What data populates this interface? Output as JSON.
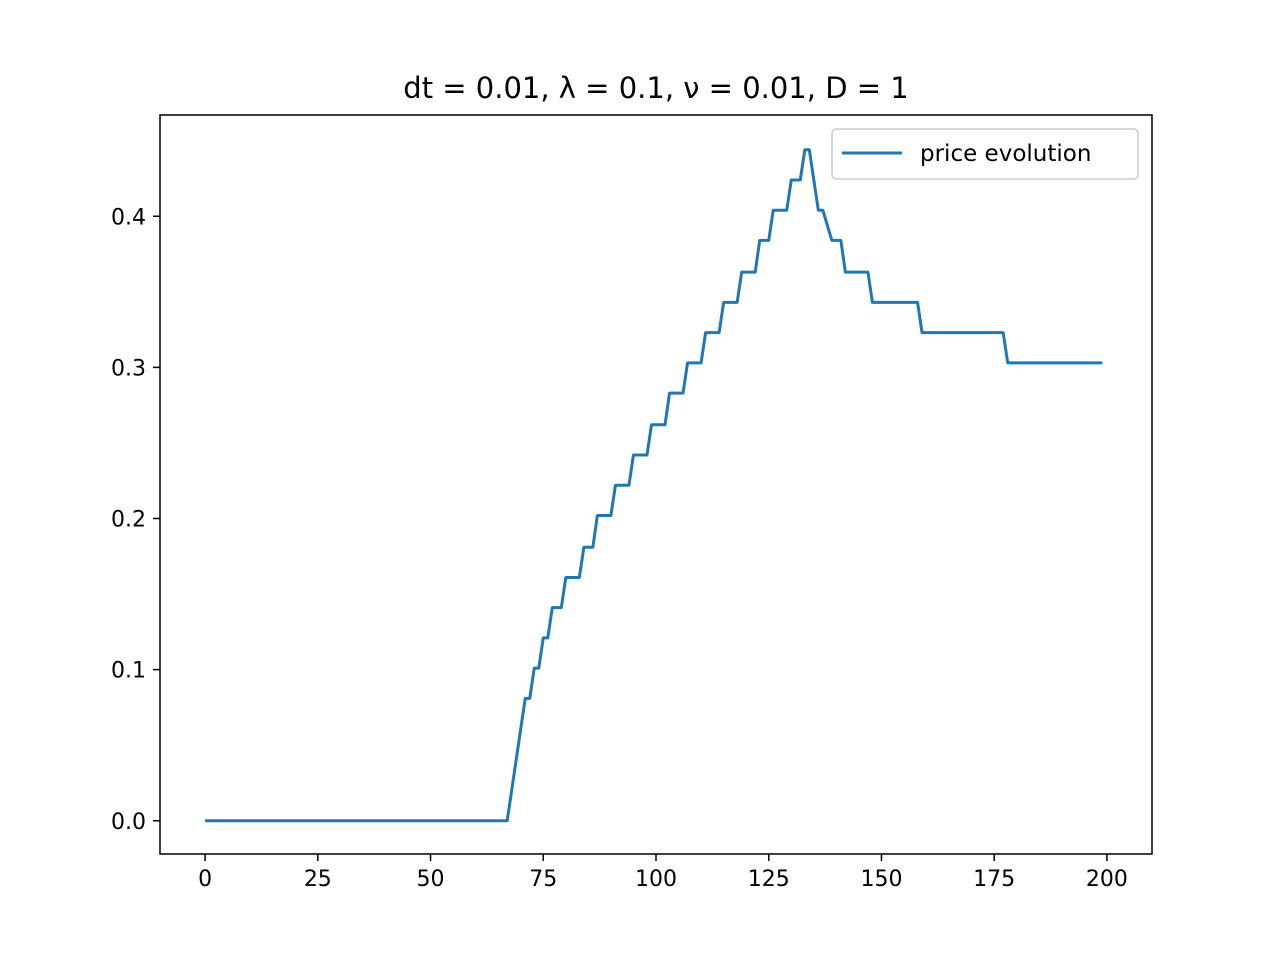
{
  "chart_data": {
    "type": "line",
    "title": "dt = 0.01, λ = 0.1, ν = 0.01, D = 1",
    "xlabel": "",
    "ylabel": "",
    "xlim": [
      -10,
      210
    ],
    "ylim": [
      -0.022,
      0.467
    ],
    "xticks": [
      0,
      25,
      50,
      75,
      100,
      125,
      150,
      175,
      200
    ],
    "xtick_labels": [
      "0",
      "25",
      "50",
      "75",
      "100",
      "125",
      "150",
      "175",
      "200"
    ],
    "yticks": [
      0.0,
      0.1,
      0.2,
      0.3,
      0.4
    ],
    "ytick_labels": [
      "0.0",
      "0.1",
      "0.2",
      "0.3",
      "0.4"
    ],
    "grid": false,
    "legend_position": "top-right",
    "series": [
      {
        "name": "price evolution",
        "color": "#1f77b4",
        "x": [
          0,
          67,
          71,
          72,
          73,
          74,
          75,
          76,
          77,
          79,
          80,
          83,
          84,
          86,
          87,
          90,
          91,
          94,
          95,
          98,
          99,
          102,
          103,
          106,
          107,
          110,
          111,
          114,
          115,
          118,
          119,
          122,
          123,
          125,
          126,
          129,
          130,
          132,
          133,
          134,
          136,
          137,
          139,
          141,
          142,
          147,
          148,
          158,
          159,
          177,
          178,
          199
        ],
        "y": [
          0.0,
          0.0,
          0.081,
          0.081,
          0.101,
          0.101,
          0.121,
          0.121,
          0.141,
          0.141,
          0.161,
          0.161,
          0.181,
          0.181,
          0.202,
          0.202,
          0.222,
          0.222,
          0.242,
          0.242,
          0.262,
          0.262,
          0.283,
          0.283,
          0.303,
          0.303,
          0.323,
          0.323,
          0.343,
          0.343,
          0.363,
          0.363,
          0.384,
          0.384,
          0.404,
          0.404,
          0.424,
          0.424,
          0.444,
          0.444,
          0.404,
          0.404,
          0.384,
          0.384,
          0.363,
          0.363,
          0.343,
          0.343,
          0.323,
          0.323,
          0.303,
          0.303
        ]
      }
    ]
  }
}
